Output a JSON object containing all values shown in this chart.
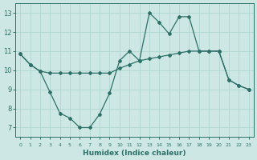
{
  "xlabel": "Humidex (Indice chaleur)",
  "background_color": "#cde8e4",
  "grid_color": "#b0d5cf",
  "line_color": "#2d7068",
  "x_values": [
    0,
    1,
    2,
    3,
    4,
    5,
    6,
    7,
    8,
    9,
    10,
    11,
    12,
    13,
    14,
    15,
    16,
    17,
    18,
    19,
    20,
    21,
    22,
    23
  ],
  "series1": [
    10.85,
    10.3,
    9.95,
    8.85,
    7.75,
    7.5,
    7.0,
    7.0,
    7.7,
    8.8,
    10.5,
    11.0,
    10.5,
    13.0,
    12.5,
    11.9,
    12.8,
    12.8,
    11.0,
    11.0,
    11.0,
    9.5,
    9.2,
    9.0
  ],
  "series2": [
    10.85,
    10.3,
    9.95,
    9.85,
    9.85,
    9.85,
    9.85,
    9.85,
    9.85,
    9.85,
    10.1,
    10.3,
    10.5,
    10.6,
    10.7,
    10.8,
    10.9,
    11.0,
    11.0,
    11.0,
    11.0,
    9.5,
    9.2,
    9.0
  ],
  "xlim": [
    -0.5,
    23.5
  ],
  "ylim": [
    6.5,
    13.5
  ],
  "yticks": [
    7,
    8,
    9,
    10,
    11,
    12,
    13
  ],
  "xtick_labels": [
    "0",
    "1",
    "2",
    "3",
    "4",
    "5",
    "6",
    "7",
    "8",
    "9",
    "10",
    "11",
    "12",
    "13",
    "14",
    "15",
    "16",
    "17",
    "18",
    "19",
    "20",
    "21",
    "22",
    "23"
  ]
}
